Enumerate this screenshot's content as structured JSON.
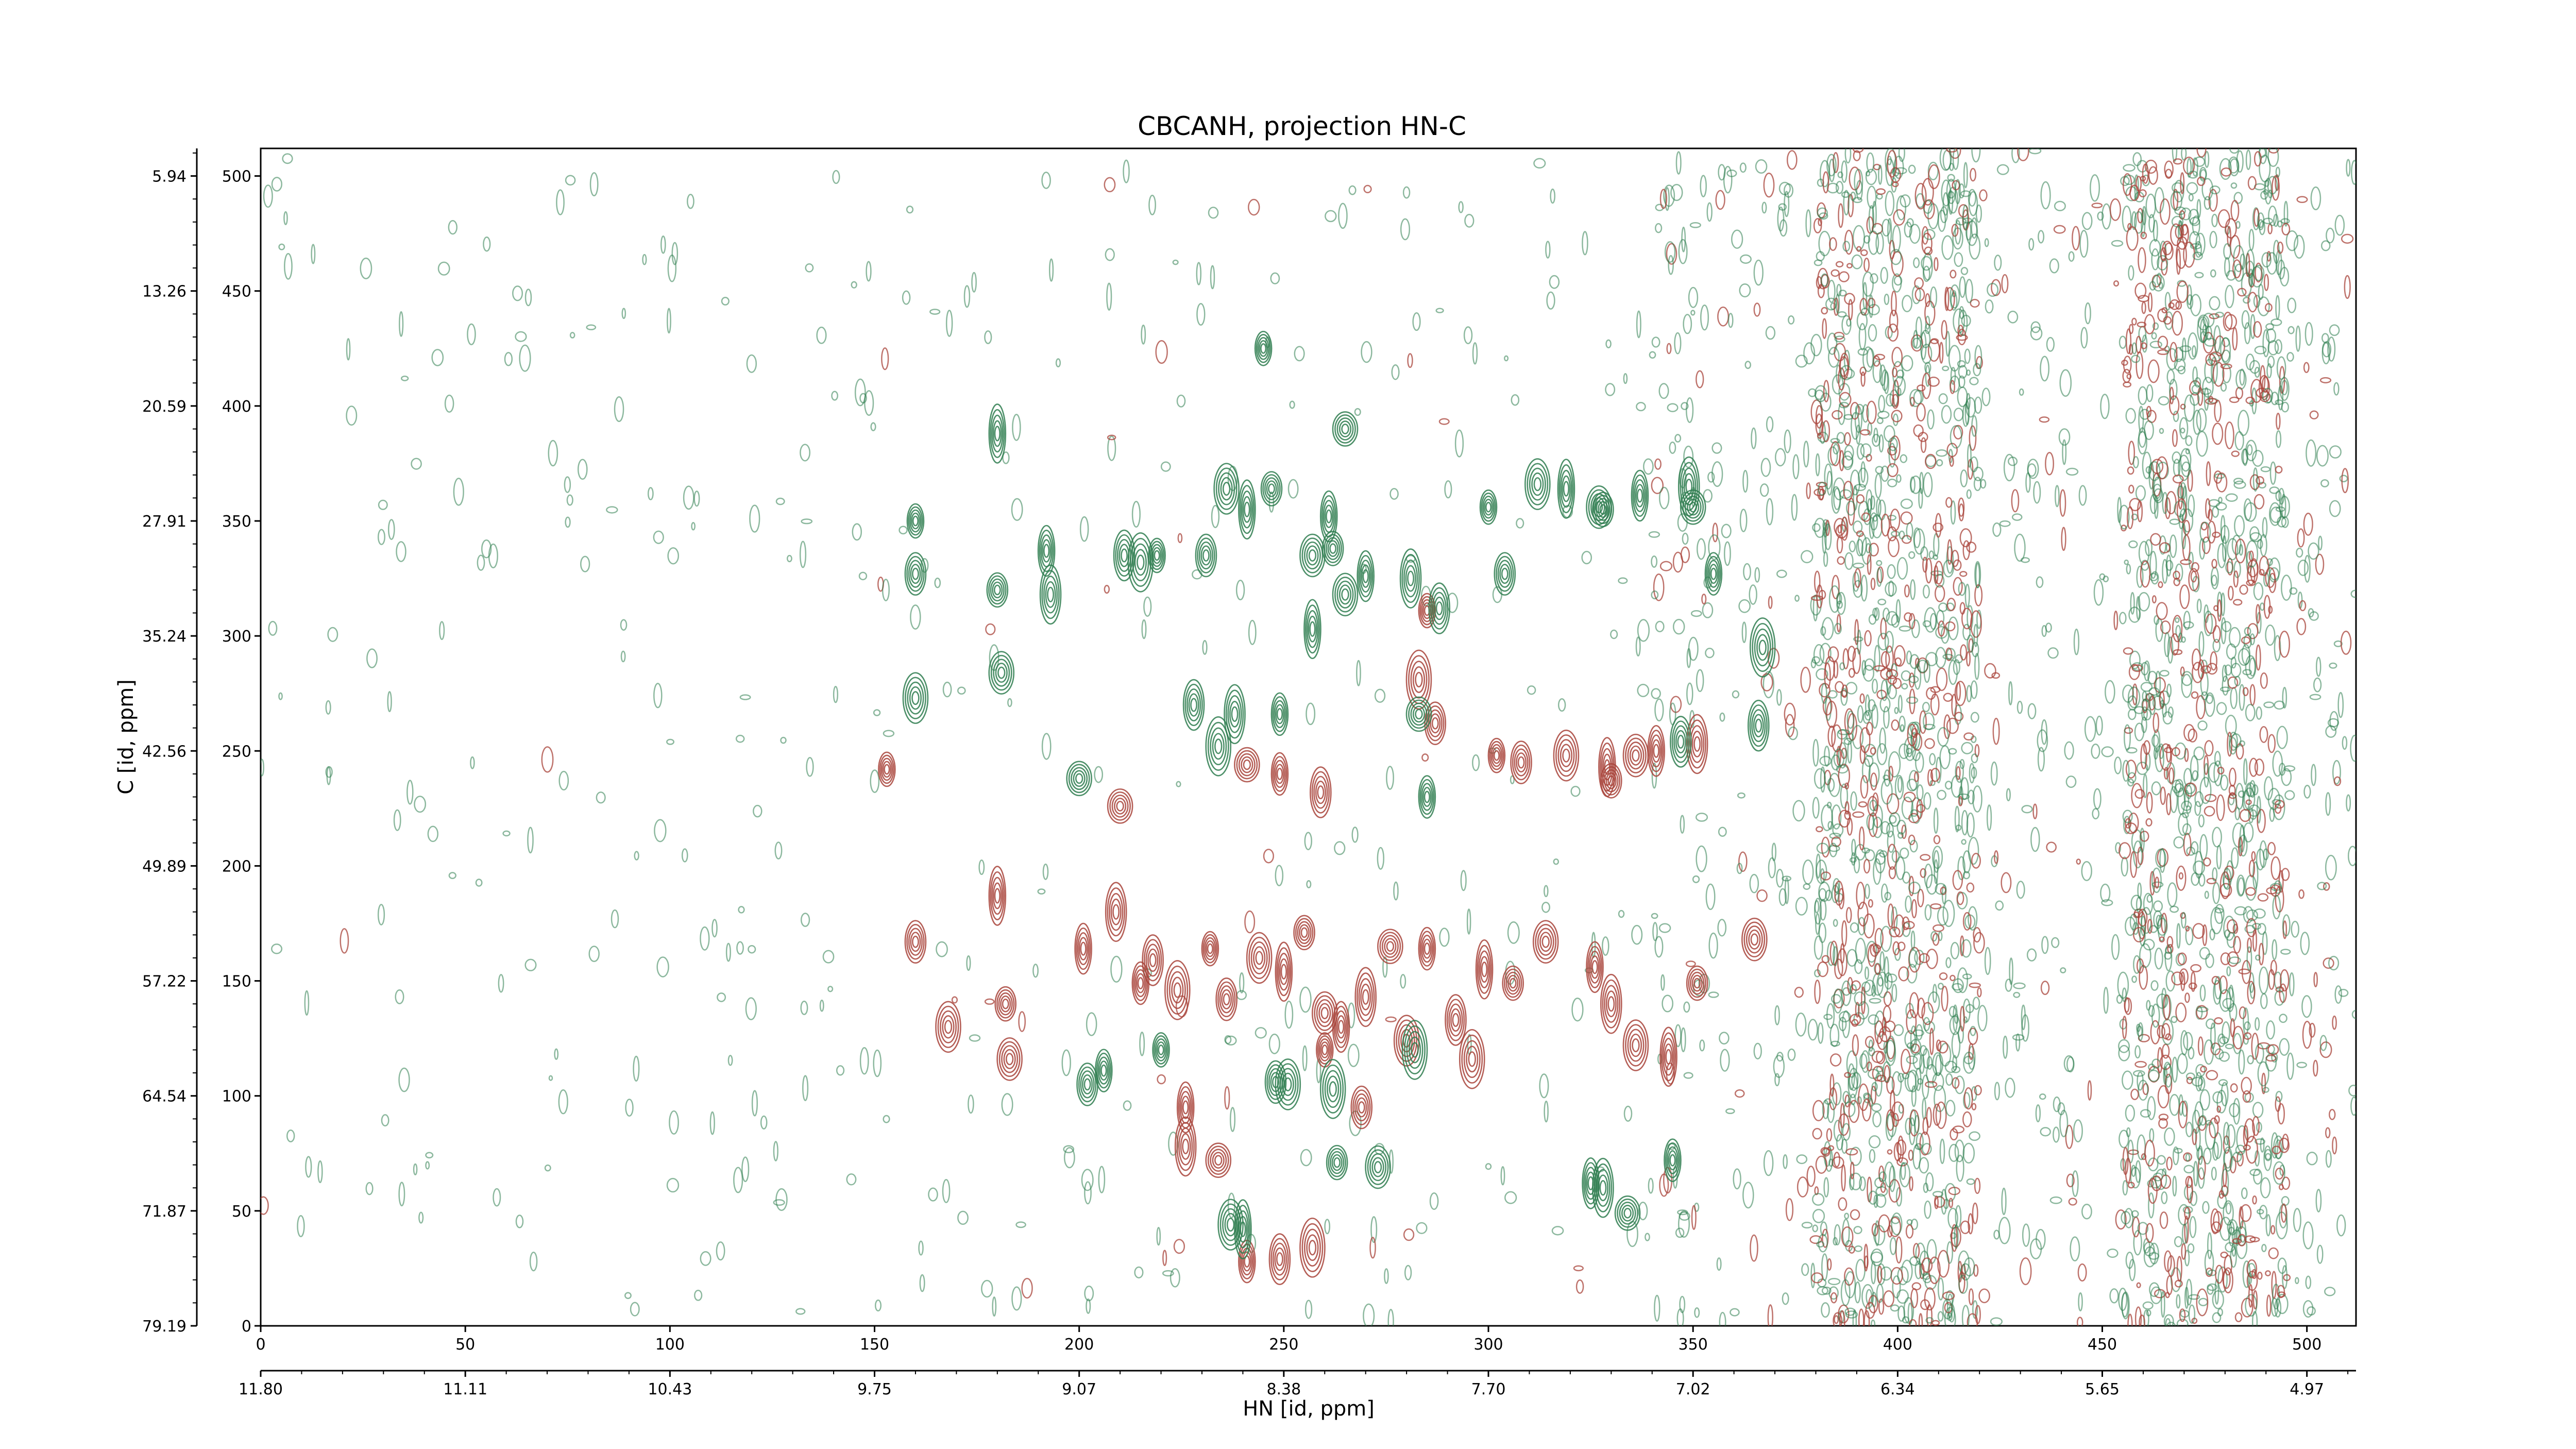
{
  "chart_data": {
    "type": "contour",
    "title": "CBCANH, projection HN-C",
    "xlabel": "HN [id, ppm]",
    "ylabel": "C [id, ppm]",
    "xlim": [
      0,
      512
    ],
    "ylim": [
      0,
      512
    ],
    "x_index_ticks": [
      0,
      50,
      100,
      150,
      200,
      250,
      300,
      350,
      400,
      450,
      500
    ],
    "x_ppm_ticks": [
      "11.80",
      "11.11",
      "10.43",
      "9.75",
      "9.07",
      "8.38",
      "7.70",
      "7.02",
      "6.34",
      "5.65",
      "4.97"
    ],
    "y_index_ticks": [
      0,
      50,
      100,
      150,
      200,
      250,
      300,
      350,
      400,
      450,
      500
    ],
    "y_ppm_ticks": [
      "79.19",
      "71.87",
      "64.54",
      "57.22",
      "49.89",
      "42.56",
      "35.24",
      "27.91",
      "20.59",
      "13.26",
      "5.94"
    ],
    "positive_color": "#a8433a",
    "negative_color": "#2e7d4f",
    "peaks": {
      "negative": [
        [
          160,
          350
        ],
        [
          160,
          327
        ],
        [
          160,
          273
        ],
        [
          180,
          388
        ],
        [
          180,
          320
        ],
        [
          181,
          284
        ],
        [
          192,
          337
        ],
        [
          193,
          318
        ],
        [
          200,
          238
        ],
        [
          206,
          111
        ],
        [
          211,
          335
        ],
        [
          215,
          332
        ],
        [
          219,
          335
        ],
        [
          231,
          335
        ],
        [
          236,
          364
        ],
        [
          241,
          355
        ],
        [
          247,
          364
        ],
        [
          257,
          335
        ],
        [
          261,
          352
        ],
        [
          238,
          266
        ],
        [
          265,
          390
        ],
        [
          249,
          266
        ],
        [
          228,
          270
        ],
        [
          234,
          252
        ],
        [
          245,
          425
        ],
        [
          248,
          106
        ],
        [
          251,
          105
        ],
        [
          257,
          303
        ],
        [
          262,
          338
        ],
        [
          265,
          318
        ],
        [
          270,
          326
        ],
        [
          281,
          325
        ],
        [
          283,
          266
        ],
        [
          285,
          230
        ],
        [
          288,
          312
        ],
        [
          282,
          120
        ],
        [
          300,
          356
        ],
        [
          304,
          327
        ],
        [
          312,
          366
        ],
        [
          319,
          364
        ],
        [
          328,
          355
        ],
        [
          327,
          356
        ],
        [
          337,
          361
        ],
        [
          349,
          365
        ],
        [
          350,
          356
        ],
        [
          355,
          327
        ],
        [
          347,
          254
        ],
        [
          262,
          103
        ],
        [
          220,
          120
        ],
        [
          202,
          105
        ],
        [
          237,
          44
        ],
        [
          240,
          42
        ],
        [
          263,
          71
        ],
        [
          273,
          69
        ],
        [
          325,
          62
        ],
        [
          328,
          60
        ],
        [
          334,
          49
        ],
        [
          345,
          72
        ],
        [
          366,
          261
        ],
        [
          367,
          295
        ]
      ],
      "positive": [
        [
          153,
          242
        ],
        [
          160,
          167
        ],
        [
          168,
          130
        ],
        [
          180,
          187
        ],
        [
          182,
          140
        ],
        [
          183,
          116
        ],
        [
          201,
          164
        ],
        [
          209,
          180
        ],
        [
          210,
          226
        ],
        [
          215,
          149
        ],
        [
          218,
          159
        ],
        [
          224,
          146
        ],
        [
          232,
          164
        ],
        [
          236,
          142
        ],
        [
          244,
          160
        ],
        [
          250,
          154
        ],
        [
          255,
          171
        ],
        [
          260,
          136
        ],
        [
          264,
          130
        ],
        [
          270,
          143
        ],
        [
          276,
          165
        ],
        [
          285,
          164
        ],
        [
          292,
          133
        ],
        [
          296,
          116
        ],
        [
          302,
          248
        ],
        [
          308,
          245
        ],
        [
          319,
          248
        ],
        [
          329,
          243
        ],
        [
          330,
          237
        ],
        [
          336,
          248
        ],
        [
          341,
          250
        ],
        [
          351,
          253
        ],
        [
          241,
          244
        ],
        [
          249,
          240
        ],
        [
          259,
          232
        ],
        [
          283,
          281
        ],
        [
          285,
          311
        ],
        [
          287,
          262
        ],
        [
          336,
          122
        ],
        [
          344,
          117
        ],
        [
          351,
          149
        ],
        [
          365,
          168
        ],
        [
          226,
          95
        ],
        [
          226,
          78
        ],
        [
          234,
          72
        ],
        [
          241,
          28
        ],
        [
          249,
          29
        ],
        [
          257,
          34
        ],
        [
          260,
          120
        ],
        [
          269,
          95
        ],
        [
          280,
          124
        ],
        [
          299,
          155
        ],
        [
          306,
          149
        ],
        [
          314,
          167
        ],
        [
          326,
          156
        ],
        [
          330,
          140
        ]
      ]
    },
    "noise_bands": [
      {
        "x_range": [
          380,
          420
        ],
        "y_range": [
          0,
          512
        ],
        "level": "dense"
      },
      {
        "x_range": [
          455,
          495
        ],
        "y_range": [
          0,
          512
        ],
        "level": "dense"
      },
      {
        "x_range": [
          350,
          512
        ],
        "y_range": [
          0,
          512
        ],
        "level": "moderate"
      }
    ],
    "grid": false,
    "legend": "none"
  },
  "icons": {
    "contour-positive": "contour-set-red",
    "contour-negative": "contour-set-green"
  }
}
